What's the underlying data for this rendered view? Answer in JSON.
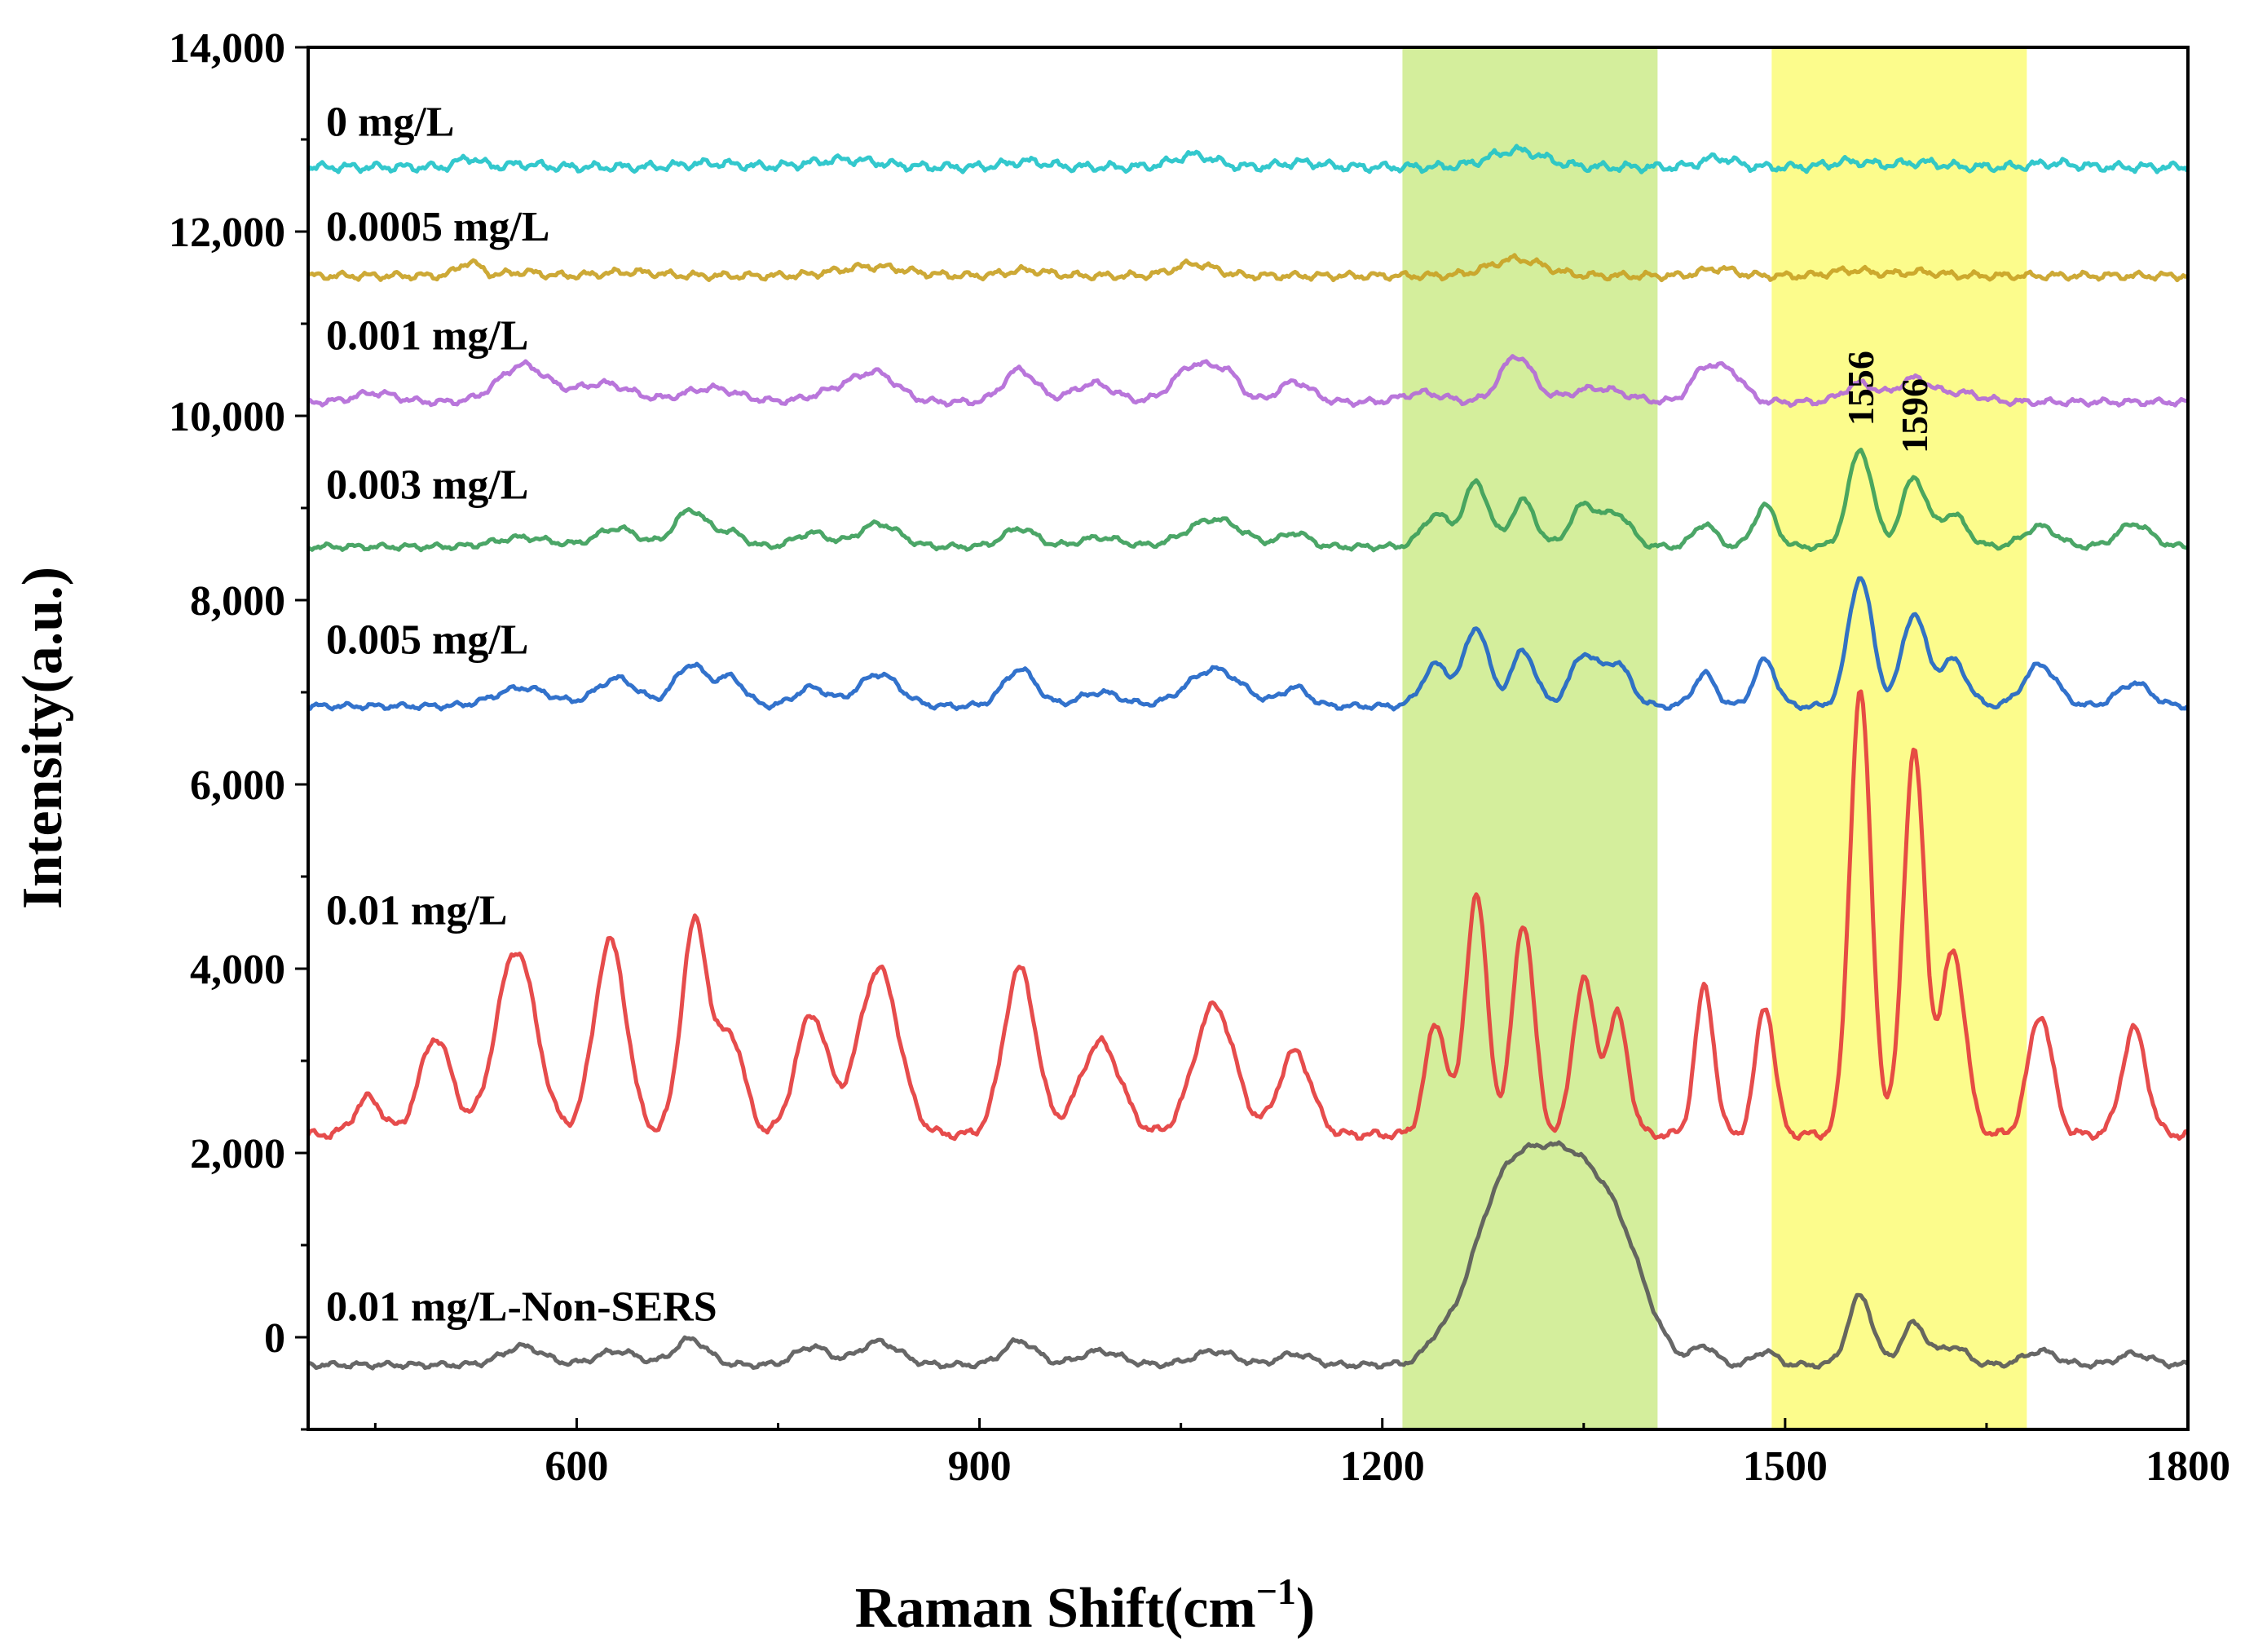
{
  "chart_data": {
    "type": "line",
    "title": "",
    "xlabel": "Raman Shift(cm",
    "xlabel_sup": "−1",
    "xlabel_close": ")",
    "ylabel": "Intensity(a.u.)",
    "xlim": [
      400,
      1800
    ],
    "ylim": [
      -1000,
      14000
    ],
    "x_ticks": [
      600,
      900,
      1200,
      1500,
      1800
    ],
    "x_tick_labels": [
      "600",
      "900",
      "1200",
      "1500",
      "1800"
    ],
    "y_ticks": [
      0,
      2000,
      4000,
      6000,
      8000,
      10000,
      12000,
      14000
    ],
    "y_tick_labels": [
      "0",
      "2,000",
      "4,000",
      "6,000",
      "8,000",
      "10,000",
      "12,000",
      "14,000"
    ],
    "highlight_bands": [
      {
        "name": "green-band",
        "x_range": [
          1215,
          1405
        ],
        "color": "#cdeb8b"
      },
      {
        "name": "yellow-band",
        "x_range": [
          1490,
          1680
        ],
        "color": "#fbfb78"
      }
    ],
    "annotations": [
      {
        "text": "1556",
        "x": 1556,
        "y": 10300
      },
      {
        "text": "1596",
        "x": 1596,
        "y": 10000
      }
    ],
    "series": [
      {
        "name": "0 mg/L",
        "color": "#22c3c9",
        "baseline": 12700,
        "label_y": 13200,
        "noise": 60,
        "peaks": [
          [
            520,
            100,
            8
          ],
          [
            560,
            30,
            12
          ],
          [
            700,
            40,
            20
          ],
          [
            800,
            80,
            25
          ],
          [
            935,
            60,
            15
          ],
          [
            1060,
            130,
            15
          ],
          [
            1140,
            50,
            15
          ],
          [
            1300,
            180,
            20
          ],
          [
            1450,
            100,
            12
          ],
          [
            1550,
            60,
            15
          ],
          [
            1600,
            50,
            15
          ],
          [
            1700,
            40,
            15
          ]
        ]
      },
      {
        "name": "0.0005 mg/L",
        "color": "#c9a225",
        "baseline": 11520,
        "label_y": 12060,
        "noise": 50,
        "peaks": [
          [
            520,
            150,
            8
          ],
          [
            560,
            40,
            12
          ],
          [
            640,
            40,
            20
          ],
          [
            820,
            100,
            25
          ],
          [
            935,
            60,
            15
          ],
          [
            1060,
            130,
            15
          ],
          [
            1300,
            180,
            20
          ],
          [
            1450,
            80,
            12
          ],
          [
            1550,
            60,
            15
          ],
          [
            1600,
            40,
            15
          ]
        ]
      },
      {
        "name": "0.001 mg/L",
        "color": "#b36ad8",
        "baseline": 10150,
        "label_y": 10880,
        "noise": 45,
        "peaks": [
          [
            450,
            100,
            15
          ],
          [
            560,
            400,
            18
          ],
          [
            620,
            200,
            20
          ],
          [
            700,
            150,
            20
          ],
          [
            800,
            150,
            20
          ],
          [
            825,
            250,
            15
          ],
          [
            930,
            350,
            12
          ],
          [
            985,
            200,
            15
          ],
          [
            1060,
            400,
            15
          ],
          [
            1085,
            250,
            10
          ],
          [
            1135,
            220,
            12
          ],
          [
            1230,
            100,
            15
          ],
          [
            1300,
            500,
            12
          ],
          [
            1360,
            150,
            20
          ],
          [
            1440,
            350,
            10
          ],
          [
            1460,
            300,
            10
          ],
          [
            1556,
            200,
            12
          ],
          [
            1596,
            250,
            12
          ],
          [
            1630,
            100,
            15
          ]
        ]
      },
      {
        "name": "0.003 mg/L",
        "color": "#3c9e5a",
        "baseline": 8580,
        "label_y": 9260,
        "noise": 40,
        "peaks": [
          [
            560,
            100,
            20
          ],
          [
            630,
            200,
            15
          ],
          [
            685,
            400,
            12
          ],
          [
            715,
            150,
            10
          ],
          [
            775,
            150,
            12
          ],
          [
            825,
            250,
            15
          ],
          [
            930,
            200,
            12
          ],
          [
            990,
            100,
            15
          ],
          [
            1075,
            300,
            20
          ],
          [
            1135,
            150,
            10
          ],
          [
            1240,
            350,
            10
          ],
          [
            1270,
            700,
            9
          ],
          [
            1305,
            500,
            9
          ],
          [
            1350,
            450,
            10
          ],
          [
            1375,
            350,
            10
          ],
          [
            1440,
            250,
            8
          ],
          [
            1485,
            450,
            8
          ],
          [
            1556,
            1050,
            9
          ],
          [
            1596,
            750,
            9
          ],
          [
            1625,
            350,
            10
          ],
          [
            1690,
            220,
            12
          ],
          [
            1760,
            250,
            12
          ]
        ]
      },
      {
        "name": "0.005 mg/L",
        "color": "#2166c8",
        "baseline": 6850,
        "label_y": 7580,
        "noise": 40,
        "peaks": [
          [
            560,
            200,
            20
          ],
          [
            630,
            300,
            15
          ],
          [
            685,
            450,
            12
          ],
          [
            715,
            300,
            10
          ],
          [
            775,
            200,
            12
          ],
          [
            825,
            350,
            15
          ],
          [
            930,
            400,
            12
          ],
          [
            990,
            150,
            15
          ],
          [
            1075,
            400,
            20
          ],
          [
            1135,
            200,
            10
          ],
          [
            1240,
            450,
            10
          ],
          [
            1270,
            850,
            9
          ],
          [
            1305,
            600,
            9
          ],
          [
            1350,
            550,
            10
          ],
          [
            1375,
            450,
            10
          ],
          [
            1440,
            350,
            8
          ],
          [
            1485,
            500,
            8
          ],
          [
            1556,
            1400,
            9
          ],
          [
            1596,
            1000,
            9
          ],
          [
            1625,
            500,
            10
          ],
          [
            1690,
            450,
            12
          ],
          [
            1760,
            250,
            12
          ]
        ]
      },
      {
        "name": "0.01 mg/L",
        "color": "#e43d3d",
        "baseline": 2200,
        "label_y": 4640,
        "noise": 60,
        "peaks": [
          [
            445,
            400,
            10
          ],
          [
            495,
            1050,
            12
          ],
          [
            555,
            2000,
            15
          ],
          [
            625,
            2100,
            12
          ],
          [
            688,
            2300,
            10
          ],
          [
            715,
            1050,
            10
          ],
          [
            775,
            1300,
            12
          ],
          [
            825,
            1800,
            15
          ],
          [
            930,
            1800,
            12
          ],
          [
            990,
            1000,
            15
          ],
          [
            1075,
            1400,
            15
          ],
          [
            1135,
            900,
            12
          ],
          [
            1240,
            1200,
            8
          ],
          [
            1270,
            2600,
            8
          ],
          [
            1305,
            2300,
            8
          ],
          [
            1350,
            1700,
            8
          ],
          [
            1375,
            1300,
            8
          ],
          [
            1440,
            1600,
            7
          ],
          [
            1485,
            1400,
            7
          ],
          [
            1556,
            4800,
            8
          ],
          [
            1596,
            4150,
            8
          ],
          [
            1625,
            2000,
            9
          ],
          [
            1690,
            1300,
            9
          ],
          [
            1760,
            1150,
            9
          ]
        ]
      },
      {
        "name": "0.01 mg/L-Non-SERS",
        "color": "#5a5a5a",
        "baseline": -300,
        "label_y": 340,
        "noise": 40,
        "peaks": [
          [
            560,
            200,
            15
          ],
          [
            630,
            150,
            15
          ],
          [
            685,
            280,
            12
          ],
          [
            775,
            200,
            12
          ],
          [
            825,
            250,
            15
          ],
          [
            930,
            260,
            12
          ],
          [
            990,
            150,
            15
          ],
          [
            1075,
            150,
            15
          ],
          [
            1135,
            120,
            12
          ],
          [
            1240,
            120,
            8
          ],
          [
            1290,
            1700,
            25
          ],
          [
            1340,
            2000,
            28
          ],
          [
            1380,
            800,
            20
          ],
          [
            1440,
            200,
            8
          ],
          [
            1485,
            150,
            8
          ],
          [
            1556,
            750,
            9
          ],
          [
            1596,
            450,
            9
          ],
          [
            1625,
            200,
            10
          ],
          [
            1690,
            150,
            12
          ],
          [
            1760,
            120,
            12
          ]
        ]
      }
    ]
  }
}
